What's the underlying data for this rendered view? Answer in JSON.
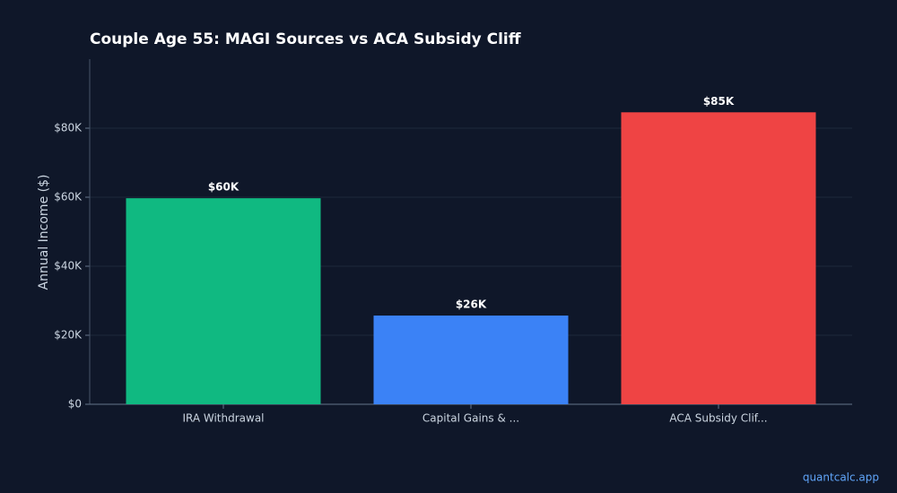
{
  "chart_data": {
    "type": "bar",
    "title": "Couple Age 55: MAGI Sources vs ACA Subsidy Cliff",
    "categories": [
      "IRA Withdrawal",
      "Capital Gains & ...",
      "ACA Subsidy Clif..."
    ],
    "values": [
      59700,
      25700,
      84600
    ],
    "value_labels": [
      "$60K",
      "$26K",
      "$85K"
    ],
    "colors": [
      "#10b981",
      "#3b82f6",
      "#ef4444"
    ],
    "ylabel": "Annual Income ($)",
    "ylim": [
      0,
      100000
    ],
    "yticks": [
      {
        "value": 0,
        "label": "$0"
      },
      {
        "value": 20000,
        "label": "$20K"
      },
      {
        "value": 40000,
        "label": "$40K"
      },
      {
        "value": 60000,
        "label": "$60K"
      },
      {
        "value": 80000,
        "label": "$80K"
      }
    ],
    "grid": true,
    "watermark": "quantcalc.app"
  }
}
